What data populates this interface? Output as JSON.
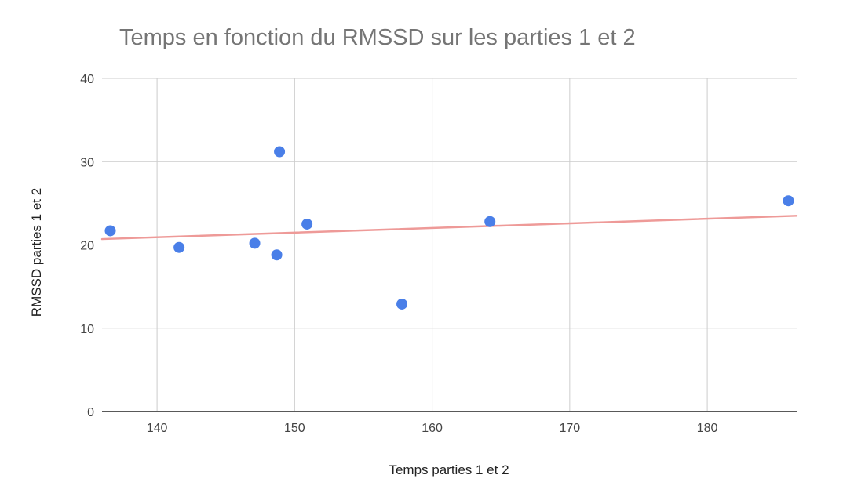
{
  "chart_data": {
    "type": "scatter",
    "title": "Temps en fonction du RMSSD sur les parties 1 et 2",
    "xlabel": "Temps parties 1 et 2",
    "ylabel": "RMSSD parties 1 et 2",
    "xlim": [
      136,
      186.5
    ],
    "ylim": [
      0,
      40
    ],
    "x_ticks": [
      140,
      150,
      160,
      170,
      180
    ],
    "y_ticks": [
      0,
      10,
      20,
      30,
      40
    ],
    "grid": true,
    "legend": "none",
    "series": [
      {
        "points": [
          {
            "x": 136.6,
            "y": 21.7
          },
          {
            "x": 141.6,
            "y": 19.7
          },
          {
            "x": 147.1,
            "y": 20.2
          },
          {
            "x": 148.7,
            "y": 18.8
          },
          {
            "x": 148.9,
            "y": 31.2
          },
          {
            "x": 150.9,
            "y": 22.5
          },
          {
            "x": 157.8,
            "y": 12.9
          },
          {
            "x": 164.2,
            "y": 22.8
          },
          {
            "x": 185.9,
            "y": 25.3
          }
        ],
        "color": "#4a7fe8"
      }
    ],
    "trendline": {
      "type": "linear",
      "from": {
        "x": 136,
        "y": 20.7
      },
      "to": {
        "x": 186.5,
        "y": 23.5
      },
      "color": "#ee9a98"
    },
    "colors": {
      "grid": "#cccccc",
      "axis": "#222222",
      "title": "#757575"
    }
  }
}
